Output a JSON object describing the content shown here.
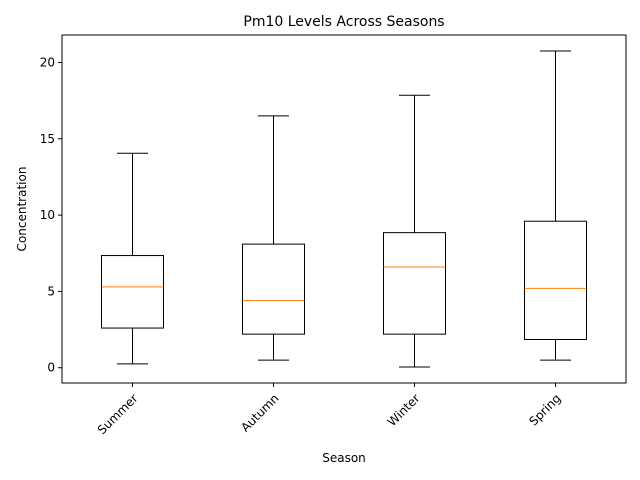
{
  "chart_data": {
    "type": "boxplot",
    "title": "Pm10 Levels Across Seasons",
    "xlabel": "Season",
    "ylabel": "Concentration",
    "ylim": [
      -1.0,
      21.8
    ],
    "yticks": [
      0,
      5,
      10,
      15,
      20
    ],
    "grid": false,
    "categories": [
      "Summer",
      "Autumn",
      "Winter",
      "Spring"
    ],
    "boxes": [
      {
        "category": "Summer",
        "whisker_low": 0.25,
        "q1": 2.6,
        "median": 5.3,
        "q3": 7.35,
        "whisker_high": 14.05
      },
      {
        "category": "Autumn",
        "whisker_low": 0.5,
        "q1": 2.2,
        "median": 4.4,
        "q3": 8.1,
        "whisker_high": 16.5
      },
      {
        "category": "Winter",
        "whisker_low": 0.05,
        "q1": 2.2,
        "median": 6.6,
        "q3": 8.85,
        "whisker_high": 17.85
      },
      {
        "category": "Spring",
        "whisker_low": 0.5,
        "q1": 1.85,
        "median": 5.2,
        "q3": 9.6,
        "whisker_high": 20.75
      }
    ],
    "colors": {
      "box": "#000000",
      "median": "#ff7f0e",
      "axis": "#000000"
    }
  }
}
